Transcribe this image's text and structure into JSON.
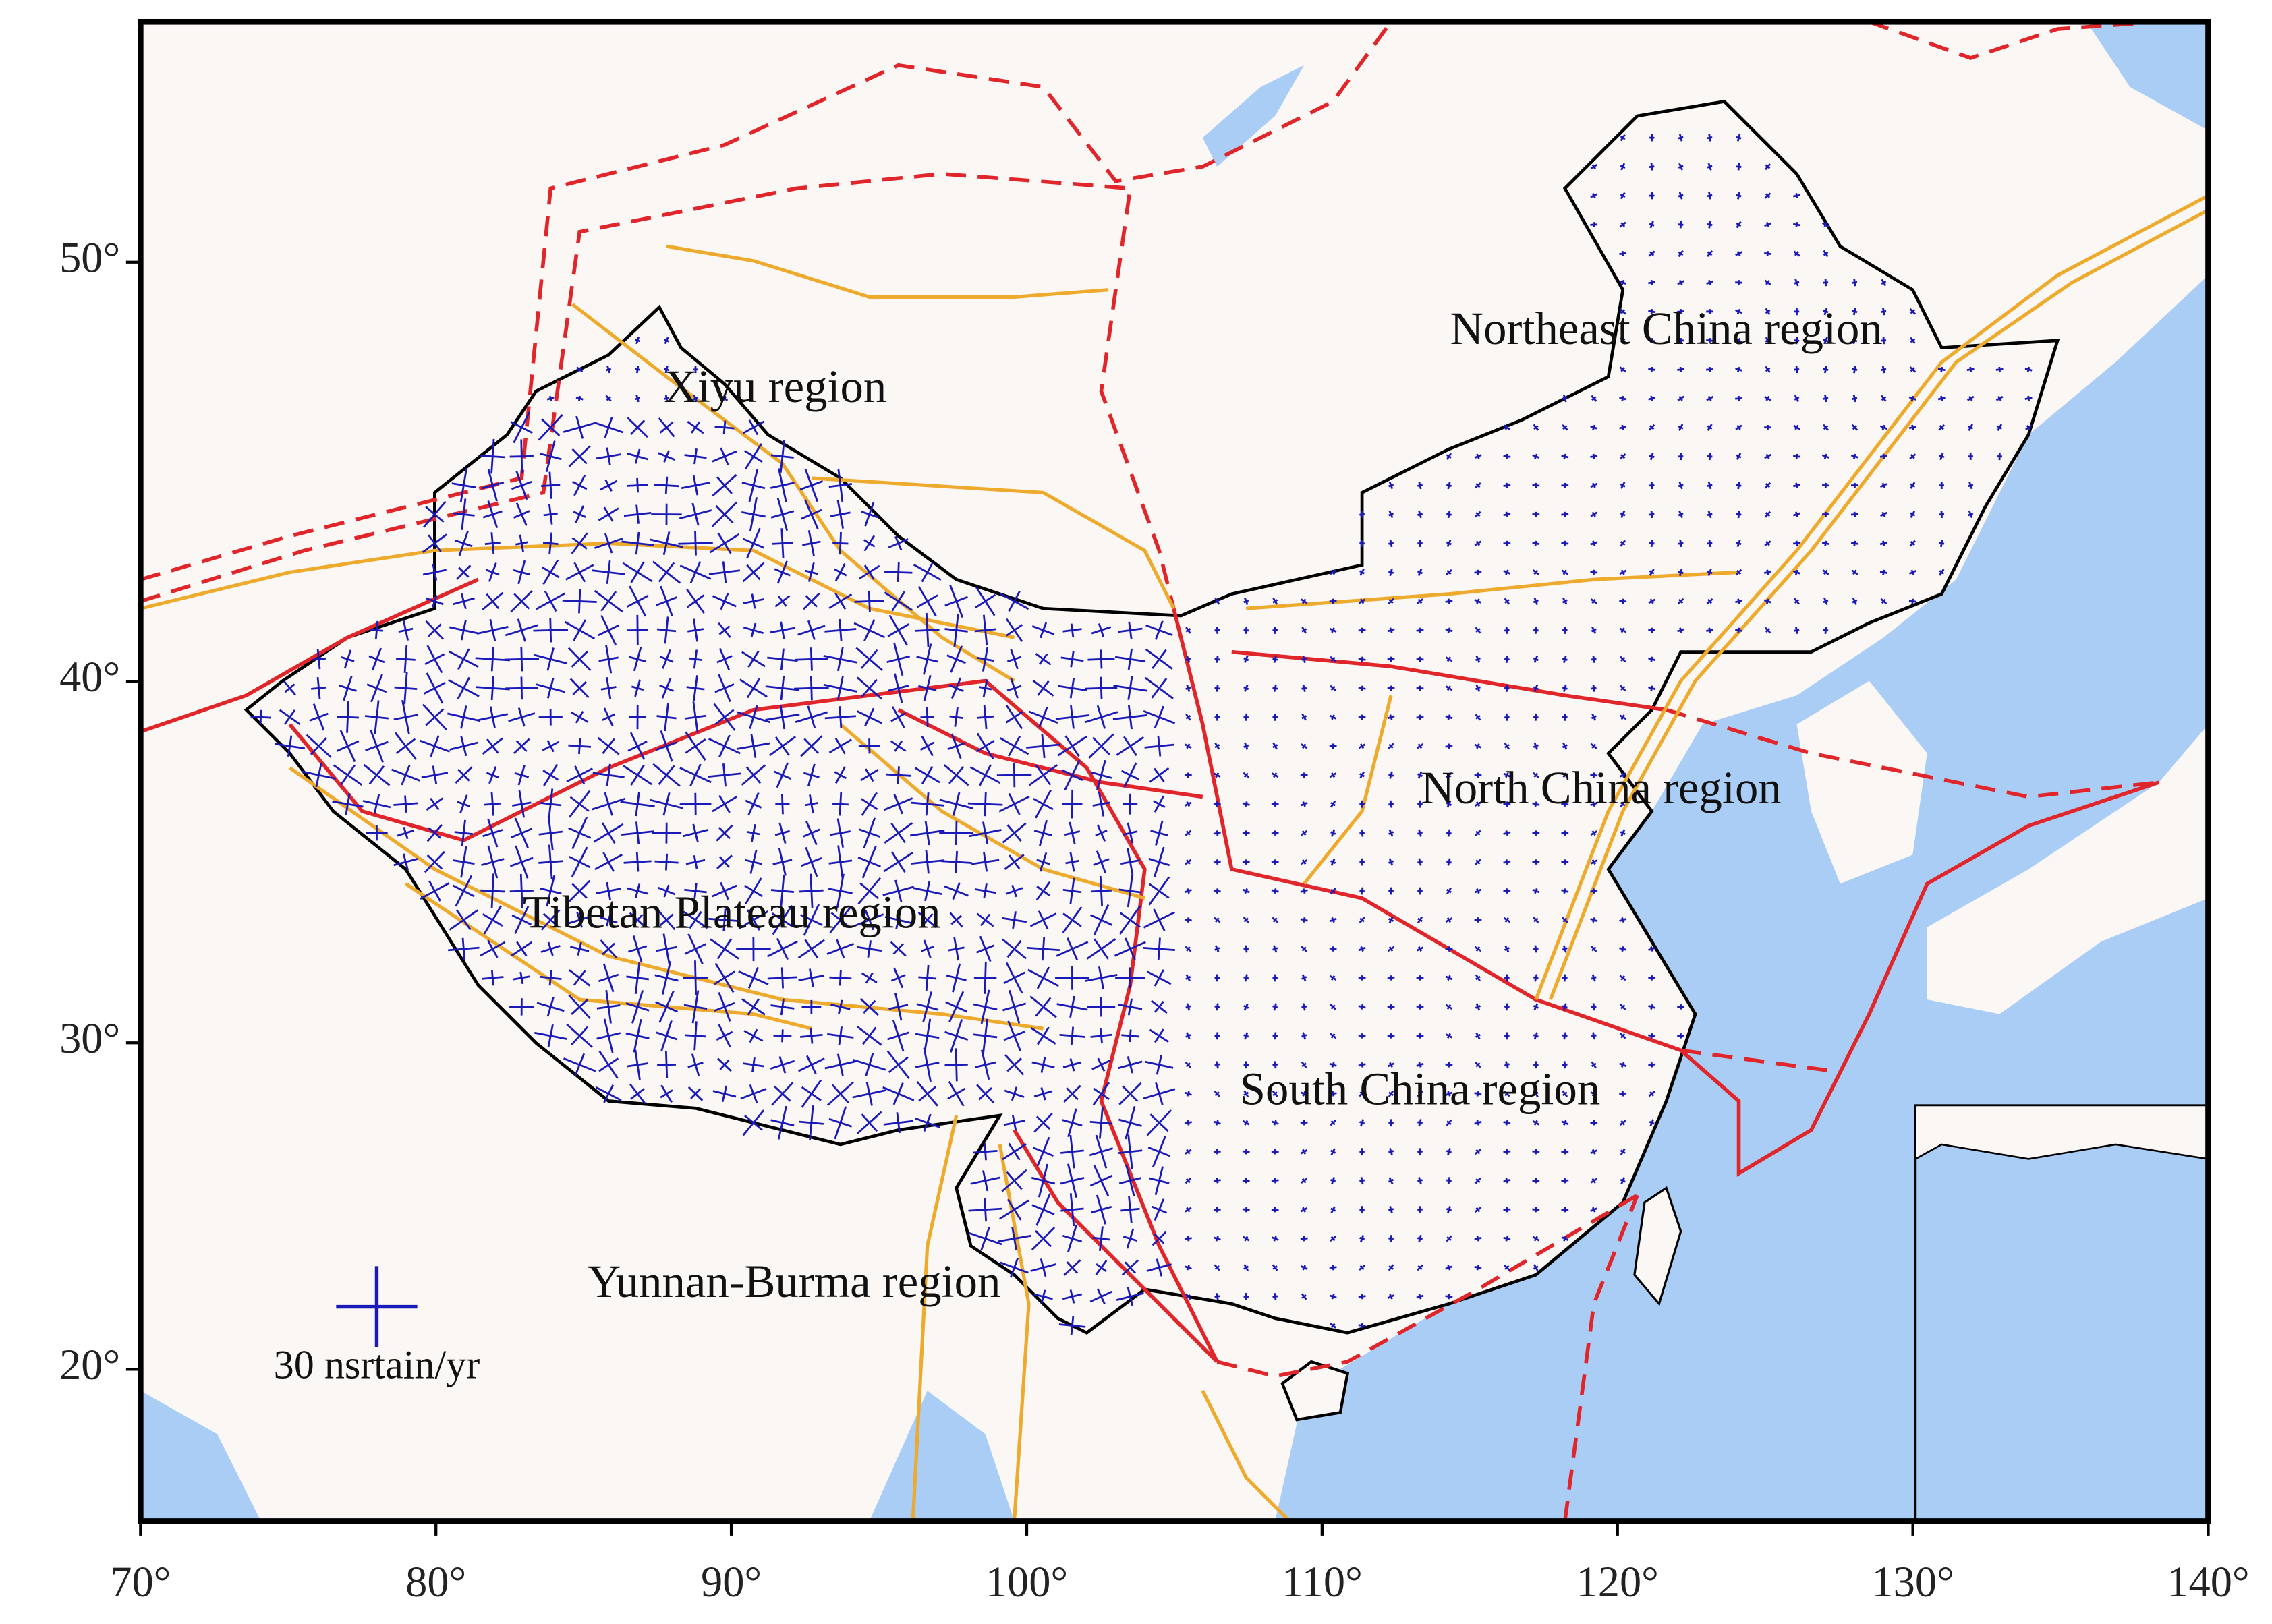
{
  "map": {
    "xlim": [
      70,
      140
    ],
    "latlim": [
      15.1,
      55
    ],
    "longitude_ticks": [
      {
        "value": 70,
        "label": "70°"
      },
      {
        "value": 80,
        "label": "80°"
      },
      {
        "value": 90,
        "label": "90°"
      },
      {
        "value": 100,
        "label": "100°"
      },
      {
        "value": 110,
        "label": "110°"
      },
      {
        "value": 120,
        "label": "120°"
      },
      {
        "value": 130,
        "label": "130°"
      },
      {
        "value": 140,
        "label": "140°"
      }
    ],
    "latitude_ticks": [
      {
        "value": 20,
        "label": "20°"
      },
      {
        "value": 30,
        "label": "30°"
      },
      {
        "value": 40,
        "label": "40°"
      },
      {
        "value": 50,
        "label": "50°"
      }
    ],
    "regions": [
      "Northeast China region",
      "Xiyu region",
      "North China region",
      "Tibetan Plateau region",
      "South China region",
      "Yunnan-Burma region"
    ],
    "scale_label": "30 nsrtain/yr"
  }
}
